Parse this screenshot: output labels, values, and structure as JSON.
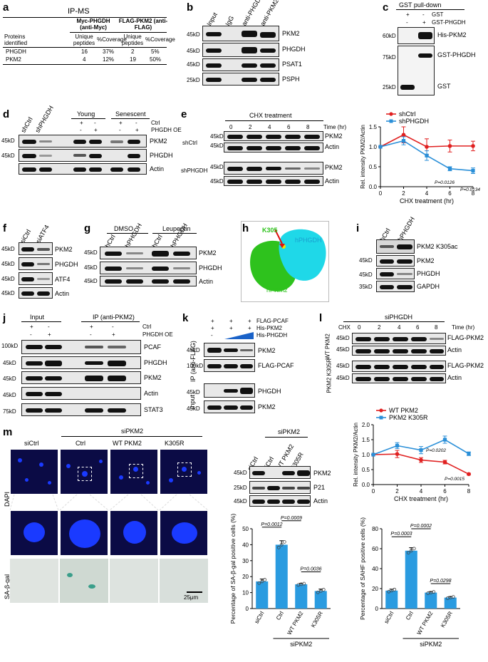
{
  "panels": {
    "a": "a",
    "b": "b",
    "c": "c",
    "d": "d",
    "e": "e",
    "f": "f",
    "g": "g",
    "h": "h",
    "i": "i",
    "j": "j",
    "k": "k",
    "l": "l",
    "m": "m"
  },
  "a": {
    "title": "IP-MS",
    "col_groups": [
      "Myc-PHGDH (anti-Myc)",
      "FLAG-PKM2 (anti-FLAG)"
    ],
    "headers": [
      "Proteins identified",
      "Unique peptides",
      "%Coverage",
      "Unique peptides",
      "%Coverage"
    ],
    "rows": [
      [
        "PHGDH",
        "16",
        "37%",
        "2",
        "5%"
      ],
      [
        "PKM2",
        "4",
        "12%",
        "19",
        "50%"
      ]
    ]
  },
  "b": {
    "lanes": [
      "Input",
      "IgG",
      "anti-PHGDH",
      "anti-PKM2"
    ],
    "mw": [
      "45kD",
      "45kD",
      "45kD",
      "25kD"
    ],
    "proteins": [
      "PKM2",
      "PHGDH",
      "PSAT1",
      "PSPH"
    ]
  },
  "c": {
    "title": "GST pull-down",
    "rows": [
      {
        "label": "GST",
        "signs": [
          "+",
          "-"
        ]
      },
      {
        "label": "GST-PHGDH",
        "signs": [
          "-",
          "+"
        ]
      }
    ],
    "mw": [
      "60kD",
      "75kD",
      "25kD"
    ],
    "proteins": [
      "His-PKM2",
      "GST-PHGDH",
      "GST"
    ]
  },
  "d": {
    "lanes_left": [
      "shCtrl",
      "shPHGDH"
    ],
    "groups": [
      "Young",
      "Senescent"
    ],
    "rows": [
      {
        "label": "Ctrl",
        "signs": [
          "+",
          "-",
          "+",
          "-"
        ]
      },
      {
        "label": "PHGDH OE",
        "signs": [
          "-",
          "+",
          "-",
          "+"
        ]
      }
    ],
    "mw": [
      "45kD",
      "45kD"
    ],
    "proteins": [
      "PKM2",
      "PHGDH",
      "Actin"
    ]
  },
  "e": {
    "title": "CHX treatment",
    "times": [
      "0",
      "2",
      "4",
      "6",
      "8"
    ],
    "time_unit": "Time (hr)",
    "groups": [
      "shCtrl",
      "shPHGDH"
    ],
    "mw": [
      "45kD",
      "45kD",
      "45kD",
      "45kD"
    ],
    "proteins": [
      "PKM2",
      "Actin",
      "PKM2",
      "Actin"
    ]
  },
  "e_chart": {
    "type": "line",
    "ylabel": "Rel. intensity PKM2/Actin",
    "xlabel": "CHX treatment (hr)",
    "x": [
      0,
      2,
      4,
      6,
      8
    ],
    "xticks": [
      "0",
      "2",
      "4",
      "6",
      "8"
    ],
    "yticks": [
      "0.0",
      "0.5",
      "1.0",
      "1.5"
    ],
    "ylim": [
      0,
      1.5
    ],
    "series": [
      {
        "name": "shCtrl",
        "color": "#e02020",
        "values": [
          1.0,
          1.3,
          1.0,
          1.02,
          1.02
        ],
        "err": [
          0,
          0.2,
          0.2,
          0.15,
          0.12
        ]
      },
      {
        "name": "shPHGDH",
        "color": "#2a8fd8",
        "values": [
          1.0,
          1.15,
          0.78,
          0.45,
          0.4
        ],
        "err": [
          0,
          0.1,
          0.12,
          0.05,
          0.07
        ]
      }
    ],
    "annotations": [
      "P=0.0126",
      "P=0.0134"
    ]
  },
  "f": {
    "lanes": [
      "siCtrl",
      "siATF4"
    ],
    "mw": [
      "45kD",
      "45kD",
      "45kD",
      "45kD"
    ],
    "proteins": [
      "PKM2",
      "PHGDH",
      "ATF4",
      "Actin"
    ]
  },
  "g": {
    "groups": [
      "DMSO",
      "Leupeptin"
    ],
    "lanes": [
      "shCtrl",
      "shPHGDH",
      "shCtrl",
      "shPHGDH"
    ],
    "mw": [
      "45kD",
      "45kD",
      "45kD"
    ],
    "proteins": [
      "PKM2",
      "PHGDH",
      "Actin"
    ]
  },
  "h": {
    "site": "K305",
    "protein_a": "hPHGDH",
    "protein_b": "hPKM2"
  },
  "i": {
    "lanes": [
      "shCtrl",
      "shPHGDH"
    ],
    "mw": [
      "45kD",
      "45kD",
      "35kD"
    ],
    "proteins": [
      "PKM2 K305ac",
      "PKM2",
      "PHGDH",
      "GAPDH"
    ]
  },
  "j": {
    "groups": [
      "Input",
      "IP (anti-PKM2)"
    ],
    "rows": [
      {
        "label": "Ctrl",
        "signs": [
          "+",
          "-",
          "+",
          "-"
        ]
      },
      {
        "label": "PHGDH OE",
        "signs": [
          "-",
          "+",
          "-",
          "+"
        ]
      }
    ],
    "mw": [
      "100kD",
      "45kD",
      "45kD",
      "45kD",
      "75kD"
    ],
    "proteins": [
      "PCAF",
      "PHGDH",
      "PKM2",
      "Actin",
      "STAT3"
    ]
  },
  "k": {
    "rows": [
      {
        "label": "FLAG-PCAF",
        "signs": [
          "+",
          "+",
          "+"
        ]
      },
      {
        "label": "His-PKM2",
        "signs": [
          "+",
          "+",
          "+"
        ]
      },
      {
        "label": "His-PHGDH",
        "signs": [
          "-",
          "",
          ""
        ]
      }
    ],
    "side_labels": [
      "IP (anti-FLAG)",
      "Input"
    ],
    "mw": [
      "45kD",
      "100kD",
      "45kD",
      "45kD"
    ],
    "proteins": [
      "PKM2",
      "FLAG-PCAF",
      "PHGDH",
      "PKM2"
    ]
  },
  "l": {
    "title": "siPHGDH",
    "chx": "CHX",
    "times": [
      "0",
      "2",
      "4",
      "6",
      "8"
    ],
    "time_unit": "Time (hr)",
    "groups": [
      "WT PKM2",
      "PKM2 K305R"
    ],
    "mw": [
      "45kD",
      "45kD",
      "45kD",
      "45kD"
    ],
    "proteins": [
      "FLAG-PKM2",
      "Actin",
      "FLAG-PKM2",
      "Actin"
    ]
  },
  "l_chart": {
    "type": "line",
    "ylabel": "Rel. intensity PKM2/Actin",
    "xlabel": "CHX treatment (hr)",
    "x": [
      0,
      2,
      4,
      6,
      8
    ],
    "xticks": [
      "0",
      "2",
      "4",
      "6",
      "8"
    ],
    "yticks": [
      "0.0",
      "0.5",
      "1.0",
      "1.5",
      "2.0"
    ],
    "ylim": [
      0,
      2.0
    ],
    "series": [
      {
        "name": "WT PKM2",
        "color": "#e02020",
        "values": [
          1.0,
          1.02,
          0.82,
          0.75,
          0.35
        ],
        "err": [
          0,
          0.12,
          0.08,
          0.06,
          0.03
        ]
      },
      {
        "name": "PKM2 K305R",
        "color": "#2a8fd8",
        "values": [
          1.0,
          1.3,
          1.15,
          1.5,
          1.03
        ],
        "err": [
          0,
          0.1,
          0.12,
          0.12,
          0.06
        ]
      }
    ],
    "annotations": [
      "P=0.0202",
      "P=0.0015"
    ]
  },
  "m": {
    "siPKM2": "siPKM2",
    "img_cols": [
      "siCtrl",
      "Ctrl",
      "WT PKM2",
      "K305R"
    ],
    "row_labels": [
      "DAPI",
      "SA-β-gal"
    ],
    "scale": "25μm",
    "blot_lanes": [
      "siCtrl",
      "siCtrl",
      "WT PKM2",
      "K305R"
    ],
    "blot_mw": [
      "45kD",
      "25kD",
      "45kD"
    ],
    "blot_proteins": [
      "PKM2",
      "P21",
      "Actin"
    ]
  },
  "chart_data": [
    {
      "type": "bar",
      "title": "",
      "categories": [
        "siCtrl",
        "Ctrl",
        "WT PKM2",
        "K305R"
      ],
      "values": [
        17,
        40,
        15.2,
        11
      ],
      "err": [
        1.5,
        2.5,
        0.6,
        1.2
      ],
      "ylabel": "Percentage of SA-β-gal positive cells (%)",
      "ylim": [
        0,
        50
      ],
      "yticks": [
        "0",
        "10",
        "20",
        "30",
        "40",
        "50"
      ],
      "group_label": "siPKM2",
      "color": "#2a9be0",
      "annotations": [
        "P=0.0012",
        "P=0.0009",
        "P=0.0036"
      ]
    },
    {
      "type": "bar",
      "title": "",
      "categories": [
        "siCtrl",
        "Ctrl",
        "WT PKM2",
        "K305R"
      ],
      "values": [
        18,
        58,
        16,
        11
      ],
      "err": [
        1.5,
        3,
        1,
        1
      ],
      "ylabel": "Percentage of SAHF positive cells (%)",
      "ylim": [
        0,
        80
      ],
      "yticks": [
        "0",
        "20",
        "40",
        "60",
        "80"
      ],
      "group_label": "siPKM2",
      "color": "#2a9be0",
      "annotations": [
        "P=0.0003",
        "P=0.0002",
        "P=0.0298"
      ]
    }
  ]
}
